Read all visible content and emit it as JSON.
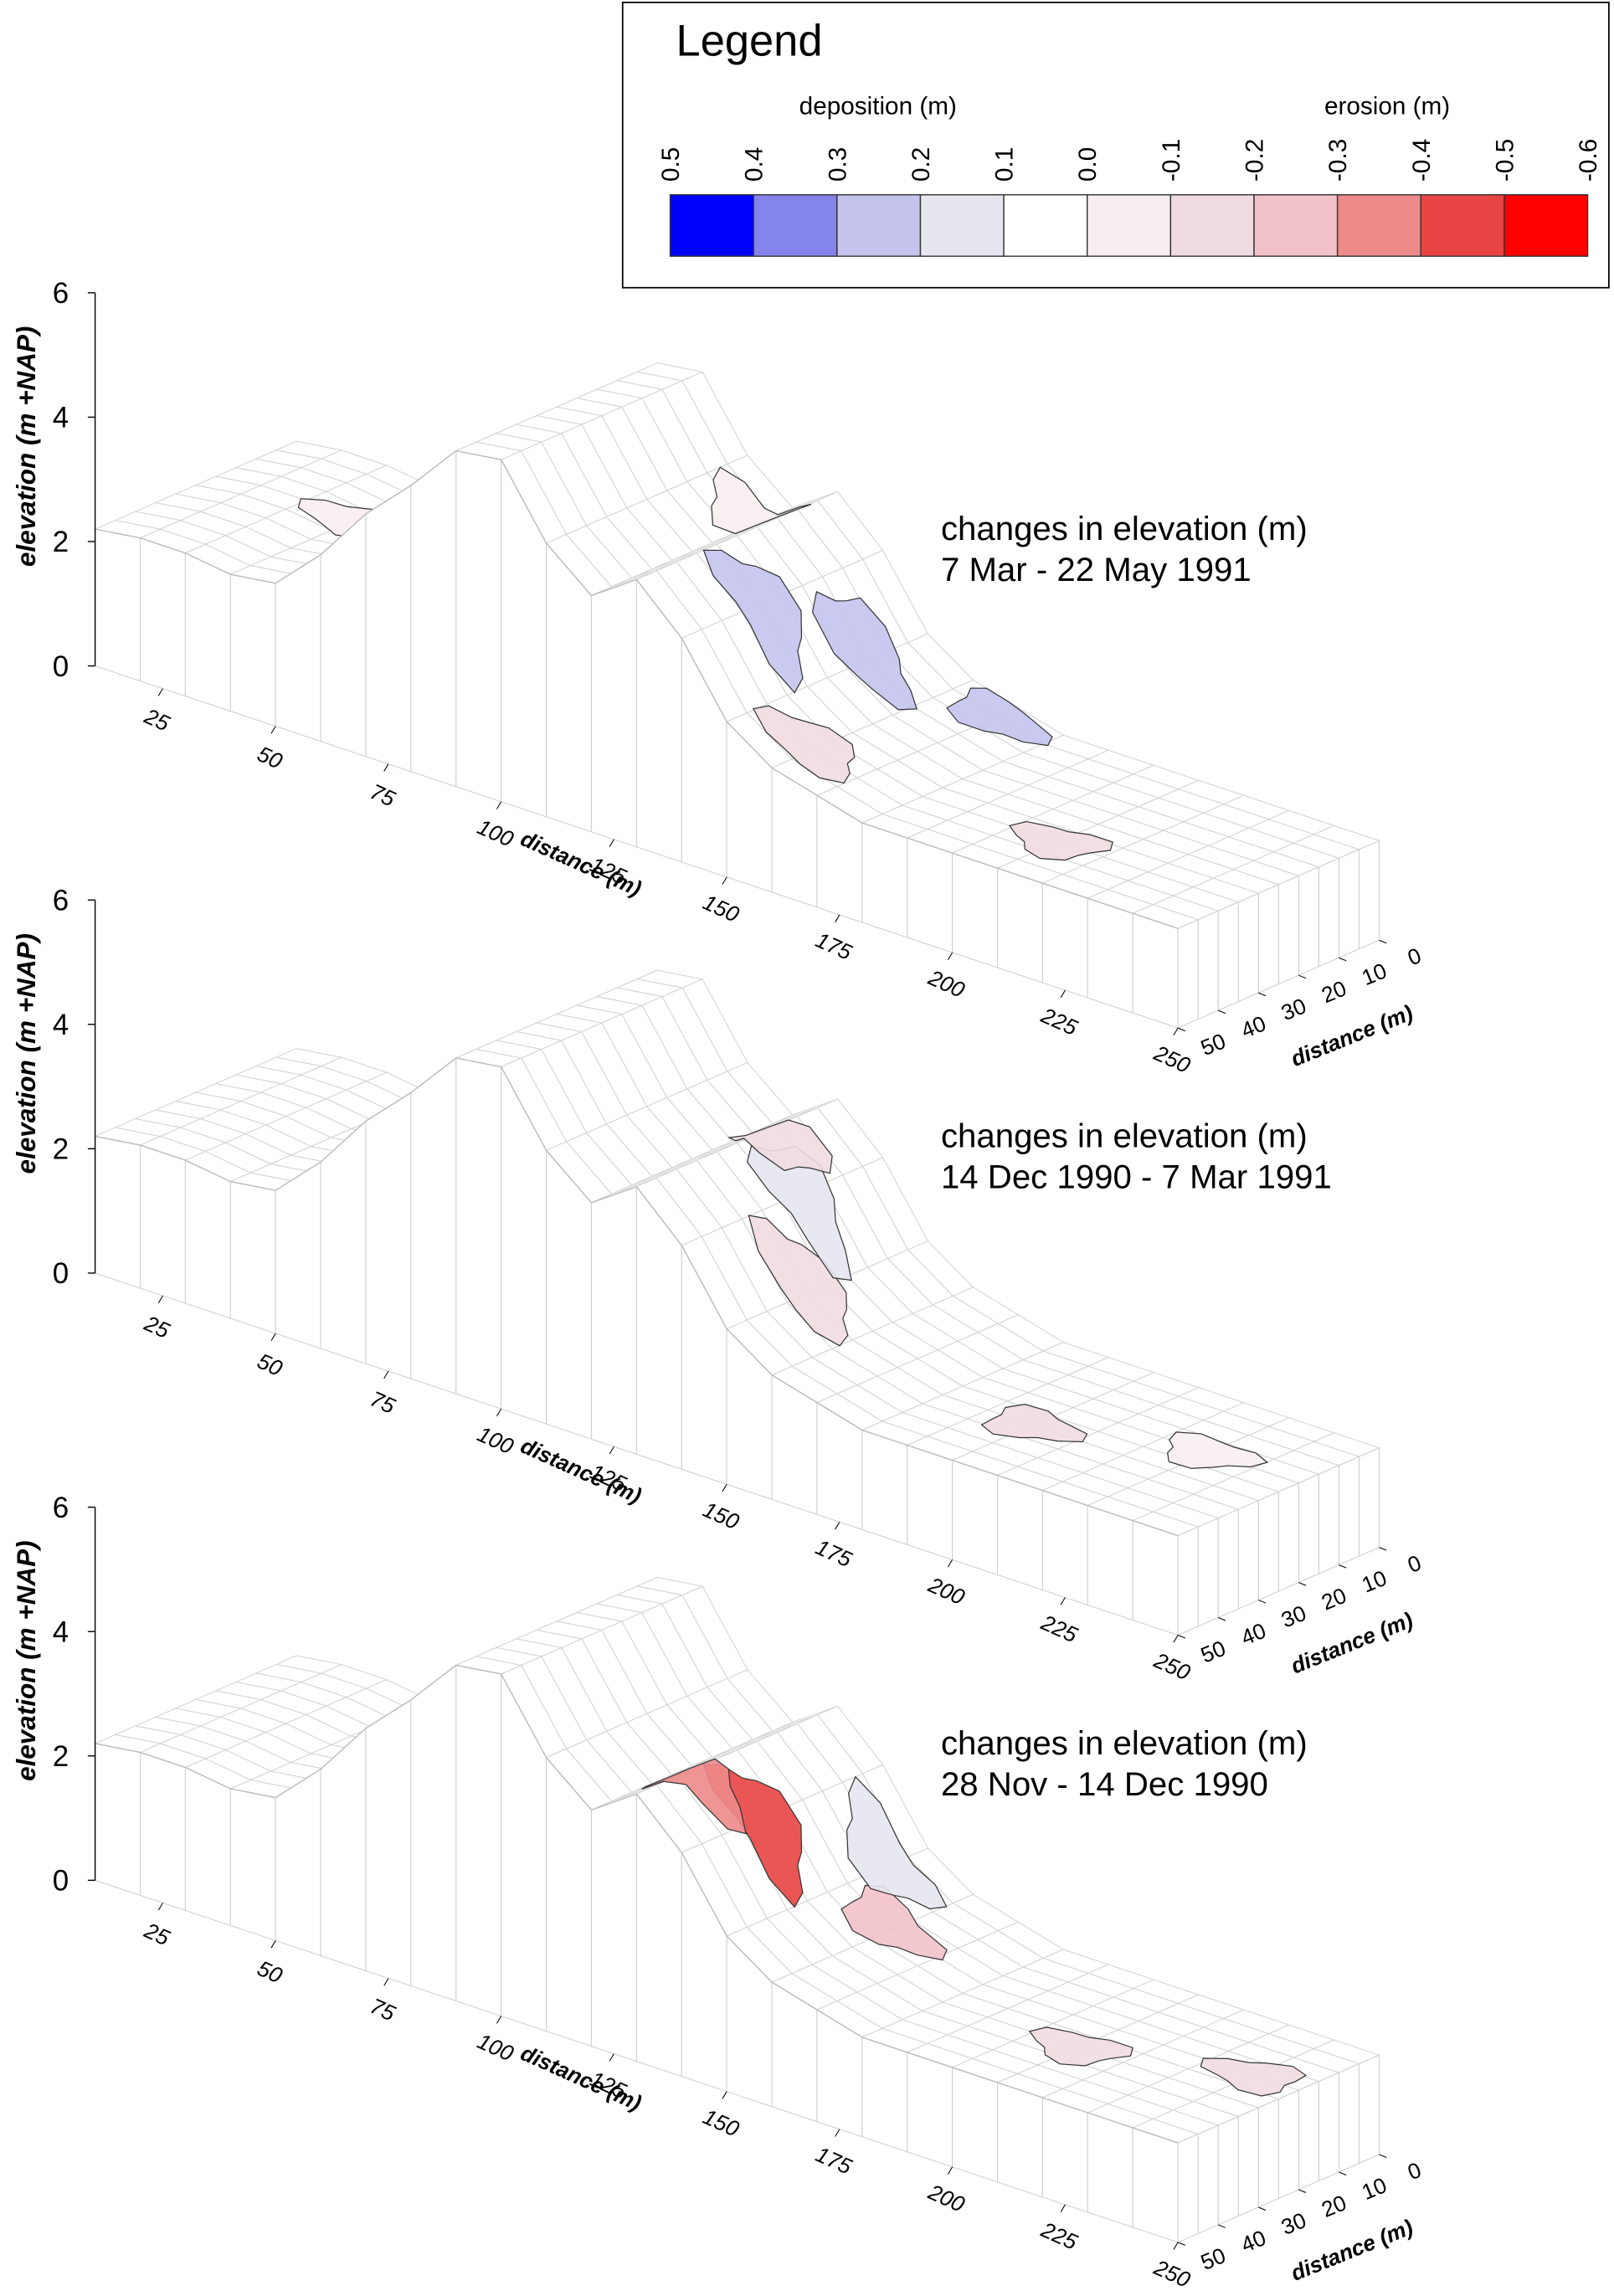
{
  "legend": {
    "title": "Legend",
    "deposition_label": "deposition (m)",
    "erosion_label": "erosion (m)",
    "ticks": [
      0.5,
      0.4,
      0.3,
      0.2,
      0.1,
      {
        "value": 0,
        "label": "0.0"
      },
      -0.1,
      -0.2,
      -0.3,
      -0.4,
      -0.5,
      -0.6
    ],
    "colors": [
      "#0000ff",
      "#8484ea",
      "#c4c4ee",
      "#e6e6ee",
      "#ffffff",
      "#f8eef0",
      "#f0dce0",
      "#f2c2ca",
      "#ee8a8a",
      "#e84444",
      "#ff0000"
    ]
  },
  "chart_data": [
    {
      "type": "surface",
      "title": [
        "changes in elevation (m)",
        "7 Mar - 22 May 1991"
      ],
      "zlabel": "elevation (m +NAP)",
      "xlabel": "distance (m)",
      "ylabel": "distance (m)",
      "zlim": [
        0,
        6
      ],
      "zticks": [
        0,
        2,
        4,
        6
      ],
      "xlim": [
        10,
        250
      ],
      "xticks": [
        25,
        50,
        75,
        100,
        125,
        150,
        175,
        200,
        225,
        250
      ],
      "ylim": [
        0,
        50
      ],
      "yticks": [
        0,
        10,
        20,
        30,
        40,
        50
      ],
      "x": [
        10,
        20,
        30,
        40,
        50,
        60,
        70,
        80,
        90,
        100,
        110,
        120,
        130,
        140,
        150,
        160,
        170,
        180,
        190,
        200,
        210,
        220,
        230,
        240,
        250
      ],
      "z": [
        2.2,
        2.3,
        2.3,
        2.2,
        2.3,
        3.0,
        3.9,
        4.6,
        5.4,
        5.5,
        4.4,
        3.8,
        4.3,
        3.6,
        2.5,
        2.0,
        1.8,
        1.6,
        1.6,
        1.6,
        1.6,
        1.6,
        1.6,
        1.6,
        1.6
      ],
      "changes": {
        "x": [
          140,
          150,
          170,
          120,
          210,
          40,
          160
        ],
        "y": [
          30,
          15,
          5,
          10,
          35,
          20,
          40
        ],
        "values": [
          0.3,
          0.25,
          0.3,
          -0.05,
          -0.1,
          -0.05,
          -0.15
        ]
      }
    },
    {
      "type": "surface",
      "title": [
        "changes in elevation (m)",
        "14 Dec 1990 - 7 Mar 1991"
      ],
      "zlabel": "elevation (m +NAP)",
      "xlabel": "distance (m)",
      "ylabel": "distance (m)",
      "zlim": [
        0,
        6
      ],
      "zticks": [
        0,
        2,
        4,
        6
      ],
      "xlim": [
        10,
        250
      ],
      "xticks": [
        25,
        50,
        75,
        100,
        125,
        150,
        175,
        200,
        225,
        250
      ],
      "ylim": [
        0,
        50
      ],
      "yticks": [
        0,
        10,
        20,
        30,
        40,
        50
      ],
      "x": [
        10,
        20,
        30,
        40,
        50,
        60,
        70,
        80,
        90,
        100,
        110,
        120,
        130,
        140,
        150,
        160,
        170,
        180,
        190,
        200,
        210,
        220,
        230,
        240,
        250
      ],
      "z": [
        2.2,
        2.3,
        2.3,
        2.2,
        2.3,
        3.0,
        3.9,
        4.6,
        5.4,
        5.5,
        4.4,
        3.8,
        4.3,
        3.6,
        2.5,
        2.0,
        1.8,
        1.6,
        1.6,
        1.6,
        1.6,
        1.6,
        1.6,
        1.6,
        1.6
      ],
      "changes": {
        "x": [
          150,
          140,
          200,
          230,
          130
        ],
        "y": [
          30,
          20,
          30,
          20,
          15
        ],
        "values": [
          -0.15,
          0.15,
          -0.1,
          -0.05,
          -0.1
        ]
      }
    },
    {
      "type": "surface",
      "title": [
        "changes in elevation (m)",
        "28 Nov - 14 Dec 1990"
      ],
      "zlabel": "elevation (m +NAP)",
      "xlabel": "distance (m)",
      "ylabel": "distance (m)",
      "zlim": [
        0,
        6
      ],
      "zticks": [
        0,
        2,
        4,
        6
      ],
      "xlim": [
        10,
        250
      ],
      "xticks": [
        25,
        50,
        75,
        100,
        125,
        150,
        175,
        200,
        225,
        250
      ],
      "ylim": [
        0,
        50
      ],
      "yticks": [
        0,
        10,
        20,
        30,
        40,
        50
      ],
      "x": [
        10,
        20,
        30,
        40,
        50,
        60,
        70,
        80,
        90,
        100,
        110,
        120,
        130,
        140,
        150,
        160,
        170,
        180,
        190,
        200,
        210,
        220,
        230,
        240,
        250
      ],
      "z": [
        2.2,
        2.3,
        2.3,
        2.2,
        2.3,
        3.0,
        3.9,
        4.6,
        5.4,
        5.5,
        4.4,
        3.8,
        4.3,
        3.6,
        2.5,
        2.0,
        1.8,
        1.6,
        1.6,
        1.6,
        1.6,
        1.6,
        1.6,
        1.6,
        1.6
      ],
      "changes": {
        "x": [
          140,
          130,
          160,
          150,
          210,
          240
        ],
        "y": [
          30,
          35,
          20,
          10,
          30,
          20
        ],
        "values": [
          -0.45,
          -0.35,
          -0.25,
          0.15,
          -0.1,
          -0.1
        ]
      }
    }
  ]
}
